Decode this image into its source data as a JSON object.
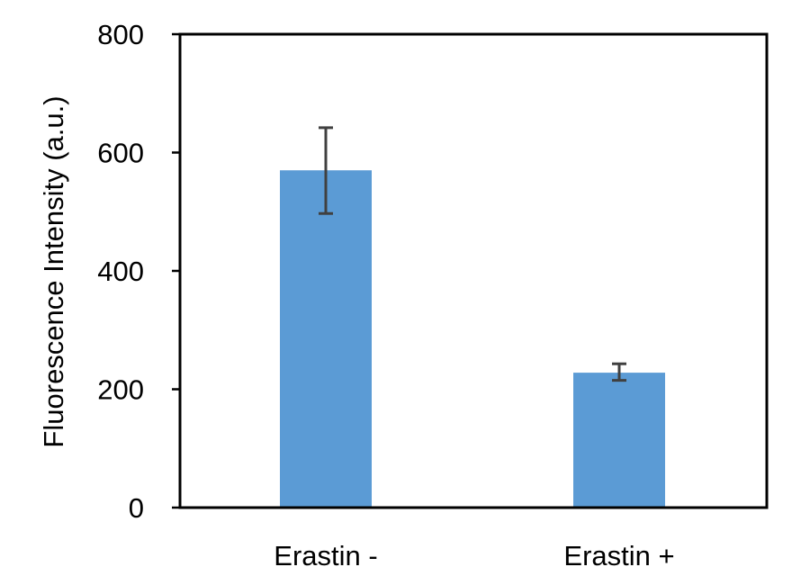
{
  "chart_data": {
    "type": "bar",
    "title": "",
    "xlabel": "",
    "ylabel": "Fluorescence Intensity (a.u.)",
    "categories": [
      "Erastin -",
      "Erastin +"
    ],
    "values": [
      570,
      228
    ],
    "error": [
      [
        497,
        642
      ],
      [
        215,
        243
      ]
    ],
    "ylim": [
      0,
      800
    ],
    "yticks": [
      "0",
      "200",
      "400",
      "600",
      "800"
    ],
    "ytick_values": [
      0,
      200,
      400,
      600,
      800
    ],
    "grid": false,
    "legend": "none",
    "colors": {
      "bar": "#5b9bd5",
      "error_bar": "#404040",
      "axis": "#000000"
    }
  }
}
